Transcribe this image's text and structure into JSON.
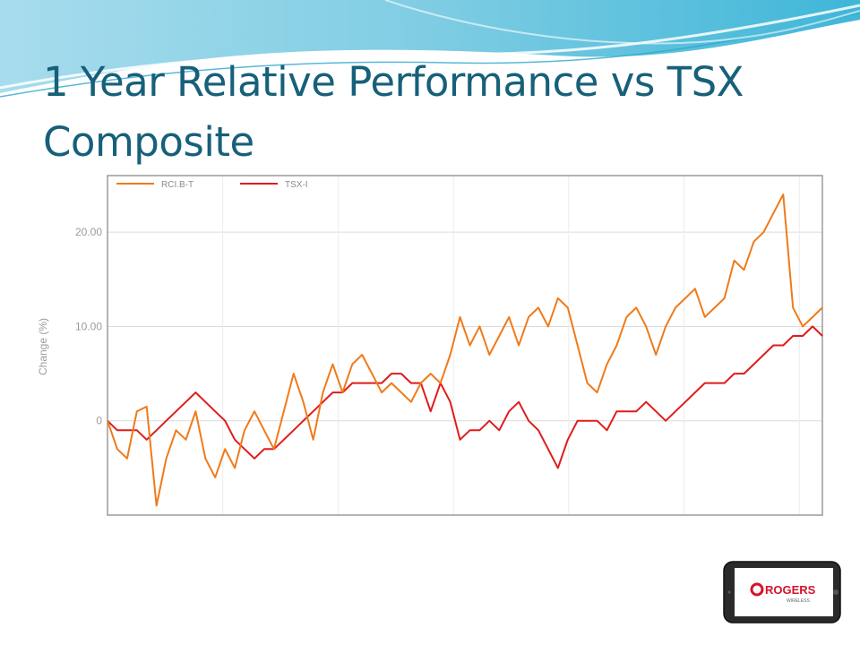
{
  "slide": {
    "title": "1 Year Relative Performance vs TSX Composite",
    "title_color": "#17607a",
    "accent_color": "#2bb3d6"
  },
  "logo": {
    "wordmark": "ROGERS",
    "sub": "WIRELESS",
    "brand_color": "#d4142b"
  },
  "chart_data": {
    "type": "line",
    "title": "",
    "xlabel": "",
    "ylabel": "Change (%)",
    "ylim": [
      -10,
      26
    ],
    "xlim": [
      0,
      365
    ],
    "yticks": [
      0,
      10,
      20
    ],
    "ytick_labels": [
      "0",
      "10.00",
      "20.00"
    ],
    "grid": true,
    "legend_position": "top-left",
    "x": [
      0,
      5,
      10,
      15,
      20,
      25,
      30,
      35,
      40,
      45,
      50,
      55,
      60,
      65,
      70,
      75,
      80,
      85,
      90,
      95,
      100,
      105,
      110,
      115,
      120,
      125,
      130,
      135,
      140,
      145,
      150,
      155,
      160,
      165,
      170,
      175,
      180,
      185,
      190,
      195,
      200,
      205,
      210,
      215,
      220,
      225,
      230,
      235,
      240,
      245,
      250,
      255,
      260,
      265,
      270,
      275,
      280,
      285,
      290,
      295,
      300,
      305,
      310,
      315,
      320,
      325,
      330,
      335,
      340,
      345,
      350,
      355,
      360,
      365
    ],
    "series": [
      {
        "name": "RCI.B-T",
        "color": "#f07a1a",
        "values": [
          0,
          -3,
          -4,
          1,
          1.5,
          -9,
          -4,
          -1,
          -2,
          1,
          -4,
          -6,
          -3,
          -5,
          -1,
          1,
          -1,
          -3,
          1,
          5,
          2,
          -2,
          3,
          6,
          3,
          6,
          7,
          5,
          3,
          4,
          3,
          2,
          4,
          5,
          4,
          7,
          11,
          8,
          10,
          7,
          9,
          11,
          8,
          11,
          12,
          10,
          13,
          12,
          8,
          4,
          3,
          6,
          8,
          11,
          12,
          10,
          7,
          10,
          12,
          13,
          14,
          11,
          12,
          13,
          17,
          16,
          19,
          20,
          22,
          24,
          12,
          10,
          11,
          12
        ]
      },
      {
        "name": "TSX-I",
        "color": "#e01b1b",
        "values": [
          0,
          -1,
          -1,
          -1,
          -2,
          -1,
          0,
          1,
          2,
          3,
          2,
          1,
          0,
          -2,
          -3,
          -4,
          -3,
          -3,
          -2,
          -1,
          0,
          1,
          2,
          3,
          3,
          4,
          4,
          4,
          4,
          5,
          5,
          4,
          4,
          1,
          4,
          2,
          -2,
          -1,
          -1,
          0,
          -1,
          1,
          2,
          0,
          -1,
          -3,
          -5,
          -2,
          0,
          0,
          0,
          -1,
          1,
          1,
          1,
          2,
          1,
          0,
          1,
          2,
          3,
          4,
          4,
          4,
          5,
          5,
          6,
          7,
          8,
          8,
          9,
          9,
          10,
          9
        ]
      }
    ]
  }
}
